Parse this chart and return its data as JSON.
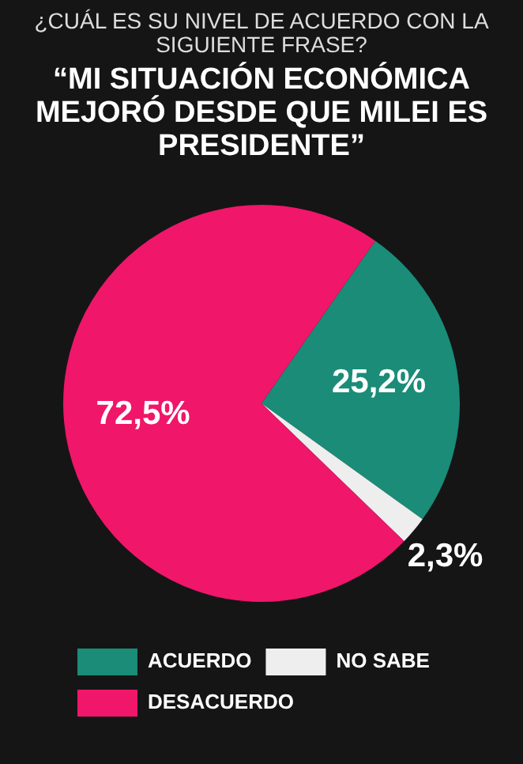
{
  "chart_data": {
    "type": "pie",
    "title": "¿CUÁL ES SU NIVEL DE ACUERDO CON LA SIGUIENTE FRASE?",
    "subtitle": "“MI SITUACIÓN ECONÓMICA MEJORÓ DESDE QUE MILEI ES PRESIDENTE”",
    "categories": [
      "ACUERDO",
      "NO SABE",
      "DESACUERDO"
    ],
    "values": [
      25.2,
      2.3,
      72.5
    ],
    "colors": [
      "#1a8c78",
      "#eeeeee",
      "#f0166a"
    ],
    "value_labels": [
      "25,2%",
      "2,3%",
      "72,5%"
    ],
    "legend": "bottom left"
  }
}
